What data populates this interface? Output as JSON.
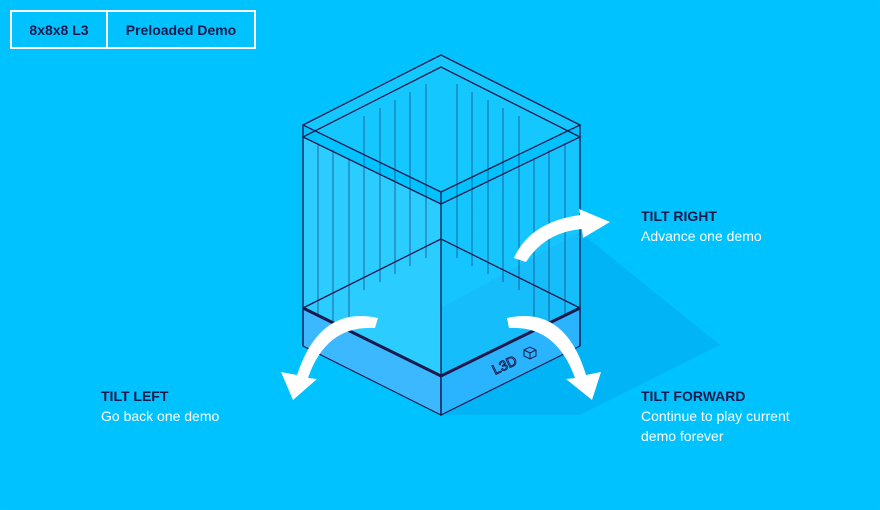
{
  "header": {
    "tab_model": "8x8x8 L3",
    "tab_mode": "Preloaded Demo"
  },
  "gestures": {
    "tilt_right": {
      "title": "TILT RIGHT",
      "desc": "Advance one demo"
    },
    "tilt_left": {
      "title": "TILT LEFT",
      "desc": "Go back one demo"
    },
    "tilt_forward": {
      "title": "TILT FORWARD",
      "desc_line1": "Continue to play current",
      "desc_line2": "demo forever"
    }
  },
  "device": {
    "logo_text": "L3D"
  },
  "colors": {
    "background": "#00c2ff",
    "outline": "#1b1a4d",
    "arrow": "#ffffff",
    "shadow": "#00b3f5"
  }
}
